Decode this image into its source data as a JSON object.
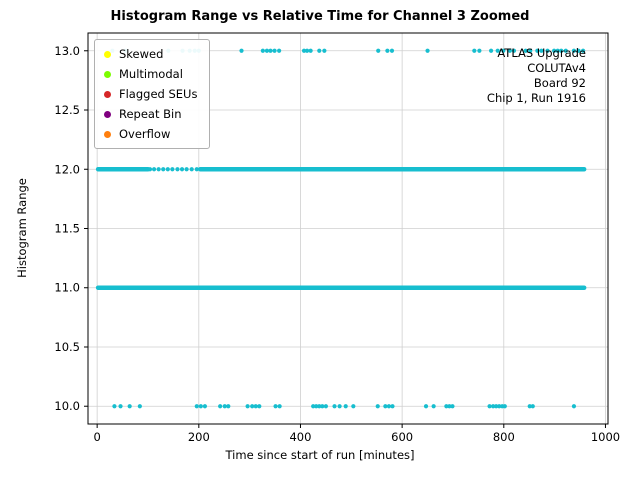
{
  "chart_data": {
    "type": "scatter",
    "title": "Histogram Range vs Relative Time for Channel 3 Zoomed",
    "xlabel": "Time since start of run [minutes]",
    "ylabel": "Histogram Range",
    "xlim": [
      -18,
      1005
    ],
    "ylim": [
      9.85,
      13.15
    ],
    "xticks": [
      0,
      200,
      400,
      600,
      800,
      1000
    ],
    "xtick_labels": [
      "0",
      "200",
      "400",
      "600",
      "800",
      "1000"
    ],
    "yticks": [
      10.0,
      10.5,
      11.0,
      11.5,
      12.0,
      12.5,
      13.0
    ],
    "ytick_labels": [
      "10.0",
      "10.5",
      "11.0",
      "11.5",
      "12.0",
      "12.5",
      "13.0"
    ],
    "grid": true,
    "grid_color": "#cfcfcf",
    "background": "#ffffff",
    "marker_color": "#17becf",
    "legend": {
      "position": "upper left",
      "entries": [
        {
          "label": "Skewed",
          "color": "#ffff00"
        },
        {
          "label": "Multimodal",
          "color": "#7cfc00"
        },
        {
          "label": "Flagged SEUs",
          "color": "#d62728"
        },
        {
          "label": "Repeat Bin",
          "color": "#800080"
        },
        {
          "label": "Overflow",
          "color": "#ff7f0e"
        }
      ]
    },
    "annotation": {
      "position": "upper right",
      "lines": [
        "ATLAS Upgrade",
        "COLUTAv4",
        "Board 92",
        "Chip 1, Run 1916"
      ]
    },
    "series": [
      {
        "name": "range-13",
        "y": 13,
        "x": [
          30,
          56,
          140,
          168,
          182,
          192,
          200,
          284,
          326,
          334,
          341,
          349,
          358,
          407,
          413,
          420,
          437,
          447,
          553,
          571,
          580,
          650,
          742,
          752,
          775,
          788,
          799,
          812,
          820,
          843,
          852,
          866,
          874,
          886,
          899,
          906,
          913,
          922,
          938,
          947,
          956
        ]
      },
      {
        "name": "range-12",
        "y": 12,
        "x_segments": [
          [
            2,
            100
          ],
          [
            203,
            958
          ]
        ],
        "x_sparse": [
          104,
          112,
          121,
          130,
          139,
          148,
          158,
          167,
          176,
          186,
          196
        ]
      },
      {
        "name": "range-11",
        "y": 11,
        "x_segments": [
          [
            2,
            958
          ]
        ],
        "x_sparse": []
      },
      {
        "name": "range-10",
        "y": 10,
        "x": [
          34,
          46,
          64,
          84,
          196,
          204,
          212,
          242,
          251,
          258,
          296,
          305,
          312,
          319,
          351,
          359,
          425,
          431,
          437,
          443,
          450,
          467,
          477,
          489,
          504,
          552,
          567,
          574,
          581,
          647,
          662,
          687,
          693,
          699,
          772,
          779,
          785,
          791,
          797,
          802,
          851,
          857,
          938
        ]
      }
    ]
  }
}
